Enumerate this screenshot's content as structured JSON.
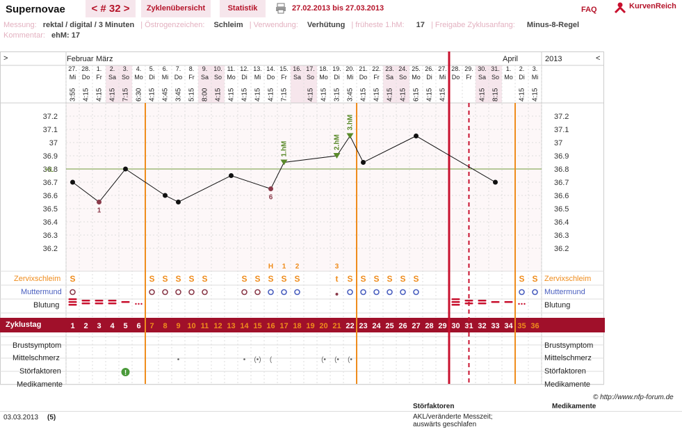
{
  "header": {
    "brand": "Supernovae",
    "cycle_tab": "< # 32 >",
    "overview_tab": "Zyklenübersicht",
    "stats_tab": "Statistik",
    "date_range": "27.02.2013 bis 27.03.2013",
    "faq": "FAQ",
    "logo_text": "KurvenReich"
  },
  "info": {
    "messung_label": "Messung:",
    "messung_value": "rektal / digital / 3 Minuten",
    "oestrogen_label": "Östrogenzeichen:",
    "oestrogen_value": "Schleim",
    "verwendung_label": "Verwendung:",
    "verwendung_value": "Verhütung",
    "fhm_label": "früheste 1.hM:",
    "fhm_value": "17",
    "freigabe_label": "Freigabe Zyklusanfang:",
    "freigabe_value": "Minus-8-Regel",
    "kommentar_label": "Kommentar:",
    "kommentar_value": "ehM: 17"
  },
  "chart_nav": {
    "prev": ">",
    "next": "<",
    "year": "2013",
    "month1": "Februar",
    "month2": "März",
    "month3": "April"
  },
  "chart_data": {
    "type": "line",
    "days": [
      {
        "cd": 1,
        "date": "27.",
        "wd": "Mi",
        "time": "3:55",
        "temp": 36.7
      },
      {
        "cd": 2,
        "date": "28.",
        "wd": "Do",
        "time": "4:15",
        "temp": null
      },
      {
        "cd": 3,
        "date": "1.",
        "wd": "Fr",
        "time": "4:15",
        "temp": 36.55,
        "note": "1"
      },
      {
        "cd": 4,
        "date": "2.",
        "wd": "Sa",
        "time": "4:15",
        "temp": null
      },
      {
        "cd": 5,
        "date": "3.",
        "wd": "So",
        "time": "7:15",
        "temp": 36.8
      },
      {
        "cd": 6,
        "date": "4.",
        "wd": "Mo",
        "time": "6:30",
        "temp": null
      },
      {
        "cd": 7,
        "date": "5.",
        "wd": "Di",
        "time": "4:15",
        "temp": null
      },
      {
        "cd": 8,
        "date": "6.",
        "wd": "Mi",
        "time": "4:45",
        "temp": 36.6
      },
      {
        "cd": 9,
        "date": "7.",
        "wd": "Do",
        "time": "3:45",
        "temp": 36.55
      },
      {
        "cd": 10,
        "date": "8.",
        "wd": "Fr",
        "time": "5:15",
        "temp": null
      },
      {
        "cd": 11,
        "date": "9.",
        "wd": "Sa",
        "time": "8:00",
        "temp": null
      },
      {
        "cd": 12,
        "date": "10.",
        "wd": "So",
        "time": "4:15",
        "temp": null
      },
      {
        "cd": 13,
        "date": "11.",
        "wd": "Mo",
        "time": "4:15",
        "temp": 36.75
      },
      {
        "cd": 14,
        "date": "12.",
        "wd": "Di",
        "time": "4:15",
        "temp": null
      },
      {
        "cd": 15,
        "date": "13.",
        "wd": "Mi",
        "time": "4:15",
        "temp": null
      },
      {
        "cd": 16,
        "date": "14.",
        "wd": "Do",
        "time": "4:15",
        "temp": 36.65,
        "note": "6"
      },
      {
        "cd": 17,
        "date": "15.",
        "wd": "Fr",
        "time": "7:15",
        "temp": 36.85,
        "hm": "1.hM"
      },
      {
        "cd": 18,
        "date": "16.",
        "wd": "Sa",
        "time": "",
        "temp": null
      },
      {
        "cd": 19,
        "date": "17.",
        "wd": "So",
        "time": "4:15",
        "temp": null
      },
      {
        "cd": 20,
        "date": "18.",
        "wd": "Mo",
        "time": "4:15",
        "temp": null
      },
      {
        "cd": 21,
        "date": "19.",
        "wd": "Di",
        "time": "3:15",
        "temp": 36.9,
        "hm": "2.hM"
      },
      {
        "cd": 22,
        "date": "20.",
        "wd": "Mi",
        "time": "3:45",
        "temp": 37.05,
        "hm": "3.hM"
      },
      {
        "cd": 23,
        "date": "21.",
        "wd": "Do",
        "time": "4:15",
        "temp": 36.85
      },
      {
        "cd": 24,
        "date": "22.",
        "wd": "Fr",
        "time": "4:15",
        "temp": null
      },
      {
        "cd": 25,
        "date": "23.",
        "wd": "Sa",
        "time": "4:15",
        "temp": null
      },
      {
        "cd": 26,
        "date": "24.",
        "wd": "So",
        "time": "4:15",
        "temp": null
      },
      {
        "cd": 27,
        "date": "25.",
        "wd": "Mo",
        "time": "6:15",
        "temp": 37.05
      },
      {
        "cd": 28,
        "date": "26.",
        "wd": "Di",
        "time": "4:15",
        "temp": null
      },
      {
        "cd": 29,
        "date": "27.",
        "wd": "Mi",
        "time": "4:15",
        "temp": null
      },
      {
        "cd": 30,
        "date": "28.",
        "wd": "Do",
        "time": "",
        "temp": null
      },
      {
        "cd": 31,
        "date": "29.",
        "wd": "Fr",
        "time": "",
        "temp": null
      },
      {
        "cd": 32,
        "date": "30.",
        "wd": "Sa",
        "time": "4:15",
        "temp": null
      },
      {
        "cd": 33,
        "date": "31.",
        "wd": "So",
        "time": "8:15",
        "temp": 36.7
      },
      {
        "cd": 34,
        "date": "1.",
        "wd": "Mo",
        "time": "",
        "temp": null
      },
      {
        "cd": 35,
        "date": "2.",
        "wd": "Di",
        "time": "4:15",
        "temp": null
      },
      {
        "cd": 36,
        "date": "3.",
        "wd": "Mi",
        "time": "4:15",
        "temp": null
      }
    ],
    "y_ticks": [
      "37.2",
      "37.1",
      "37",
      "36.9",
      "36.8",
      "36.7",
      "36.6",
      "36.5",
      "36.4",
      "36.3",
      "36.2"
    ],
    "ylim": [
      36.1,
      37.25
    ],
    "hl_label": "HL",
    "hl_value": 36.8,
    "colors": {
      "line": "#111",
      "hm": "#5a8a2a",
      "hl": "#6f9a3a",
      "orange": "#ef8c1c",
      "red": "#c8102e",
      "blue": "#4a5fbf",
      "zyklus": "#a0102a"
    }
  },
  "row_labels": {
    "zervix": "Zervixschleim",
    "muttermund": "Muttermund",
    "blutung": "Blutung",
    "zyklustag": "Zyklustag",
    "brust": "Brustsymptom",
    "mittelschmerz": "Mittelschmerz",
    "stoer": "Störfaktoren",
    "medi": "Medikamente"
  },
  "peak_marks": {
    "H": "H",
    "one": "1",
    "two": "2",
    "three": "3"
  },
  "copyright": "© http://www.nfp-forum.de",
  "footer": {
    "date": "03.03.2013",
    "num": "(5)",
    "stoer_head": "Störfaktoren",
    "medi_head": "Medikamente",
    "stoer_line1": "AKL/veränderte Messzeit;",
    "stoer_line2": "auswärts geschlafen"
  }
}
